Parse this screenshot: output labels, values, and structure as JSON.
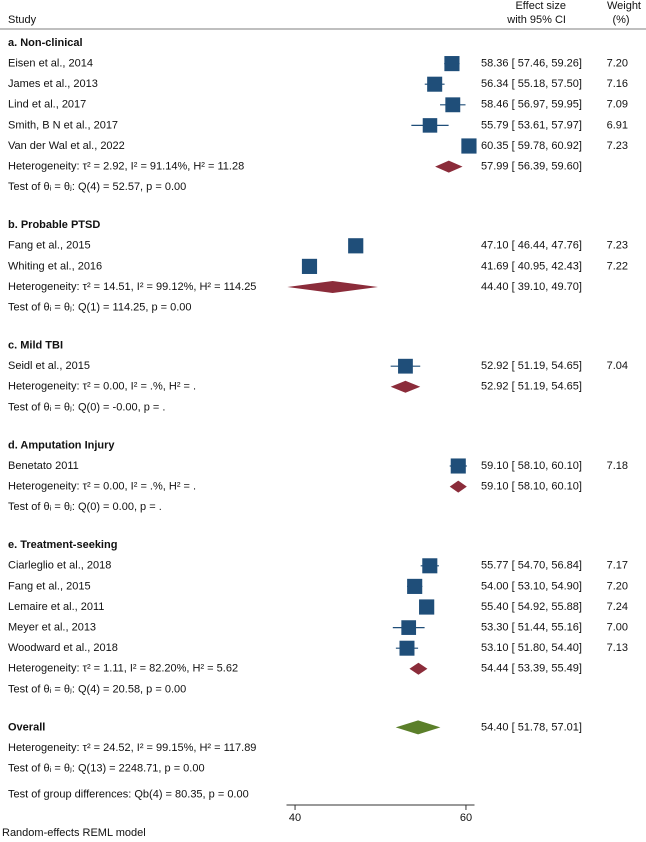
{
  "chart_data": {
    "type": "forest",
    "header": {
      "study": "Study",
      "effect": [
        "Effect size",
        "with 95% CI"
      ],
      "weight": [
        "Weight",
        "(%)"
      ]
    },
    "xlim": [
      39,
      61
    ],
    "xticks": [
      40,
      60
    ],
    "colors": {
      "study": "#1f4e79",
      "subgroup": "#8b2c3a",
      "overall": "#5b7f2a"
    },
    "groups": [
      {
        "name": "a. Non-clinical",
        "studies": [
          {
            "name": "Eisen et al., 2014",
            "estimate": 58.36,
            "lower": 57.46,
            "upper": 59.26,
            "ci_label": "58.36 [ 57.46, 59.26]",
            "weight": 7.2,
            "weight_label": "7.20"
          },
          {
            "name": "James et al., 2013",
            "estimate": 56.34,
            "lower": 55.18,
            "upper": 57.5,
            "ci_label": "56.34 [ 55.18, 57.50]",
            "weight": 7.16,
            "weight_label": "7.16"
          },
          {
            "name": "Lind et al., 2017",
            "estimate": 58.46,
            "lower": 56.97,
            "upper": 59.95,
            "ci_label": "58.46 [ 56.97, 59.95]",
            "weight": 7.09,
            "weight_label": "7.09"
          },
          {
            "name": "Smith, B N et al., 2017",
            "estimate": 55.79,
            "lower": 53.61,
            "upper": 57.97,
            "ci_label": "55.79 [ 53.61, 57.97]",
            "weight": 6.91,
            "weight_label": "6.91"
          },
          {
            "name": "Van der  Wal et al., 2022",
            "estimate": 60.35,
            "lower": 59.78,
            "upper": 60.92,
            "ci_label": "60.35 [ 59.78, 60.92]",
            "weight": 7.23,
            "weight_label": "7.23"
          }
        ],
        "summary": {
          "estimate": 57.99,
          "lower": 56.39,
          "upper": 59.6,
          "ci_label": "57.99 [ 56.39, 59.60]"
        },
        "heterogeneity": "Heterogeneity: τ² = 2.92, I² = 91.14%, H² = 11.28",
        "test": "Test of θᵢ = θⱼ: Q(4) = 52.57, p = 0.00"
      },
      {
        "name": "b. Probable PTSD",
        "studies": [
          {
            "name": "Fang et al., 2015",
            "estimate": 47.1,
            "lower": 46.44,
            "upper": 47.76,
            "ci_label": "47.10 [ 46.44, 47.76]",
            "weight": 7.23,
            "weight_label": "7.23"
          },
          {
            "name": "Whiting et al., 2016",
            "estimate": 41.69,
            "lower": 40.95,
            "upper": 42.43,
            "ci_label": "41.69 [ 40.95, 42.43]",
            "weight": 7.22,
            "weight_label": "7.22"
          }
        ],
        "summary": {
          "estimate": 44.4,
          "lower": 39.1,
          "upper": 49.7,
          "ci_label": "44.40 [ 39.10, 49.70]"
        },
        "heterogeneity": "Heterogeneity: τ² = 14.51, I² = 99.12%, H² = 114.25",
        "test": "Test of θᵢ = θⱼ: Q(1) = 114.25, p = 0.00"
      },
      {
        "name": "c. Mild TBI",
        "studies": [
          {
            "name": "Seidl et al., 2015",
            "estimate": 52.92,
            "lower": 51.19,
            "upper": 54.65,
            "ci_label": "52.92 [ 51.19, 54.65]",
            "weight": 7.04,
            "weight_label": "7.04"
          }
        ],
        "summary": {
          "estimate": 52.92,
          "lower": 51.19,
          "upper": 54.65,
          "ci_label": "52.92 [ 51.19, 54.65]"
        },
        "heterogeneity": "Heterogeneity: τ² = 0.00, I² = .%, H² = .",
        "test": "Test of θᵢ = θⱼ: Q(0) = -0.00, p = ."
      },
      {
        "name": "d. Amputation Injury",
        "studies": [
          {
            "name": "Benetato 2011",
            "estimate": 59.1,
            "lower": 58.1,
            "upper": 60.1,
            "ci_label": "59.10 [ 58.10, 60.10]",
            "weight": 7.18,
            "weight_label": "7.18"
          }
        ],
        "summary": {
          "estimate": 59.1,
          "lower": 58.1,
          "upper": 60.1,
          "ci_label": "59.10 [ 58.10, 60.10]"
        },
        "heterogeneity": "Heterogeneity: τ² = 0.00, I² = .%, H² = .",
        "test": "Test of θᵢ = θⱼ: Q(0) = 0.00, p = ."
      },
      {
        "name": "e. Treatment-seeking",
        "studies": [
          {
            "name": "Ciarleglio et al., 2018",
            "estimate": 55.77,
            "lower": 54.7,
            "upper": 56.84,
            "ci_label": "55.77 [ 54.70, 56.84]",
            "weight": 7.17,
            "weight_label": "7.17"
          },
          {
            "name": "Fang et al., 2015",
            "estimate": 54.0,
            "lower": 53.1,
            "upper": 54.9,
            "ci_label": "54.00 [ 53.10, 54.90]",
            "weight": 7.2,
            "weight_label": "7.20"
          },
          {
            "name": "Lemaire et al., 2011",
            "estimate": 55.4,
            "lower": 54.92,
            "upper": 55.88,
            "ci_label": "55.40 [ 54.92, 55.88]",
            "weight": 7.24,
            "weight_label": "7.24"
          },
          {
            "name": "Meyer et al., 2013",
            "estimate": 53.3,
            "lower": 51.44,
            "upper": 55.16,
            "ci_label": "53.30 [ 51.44, 55.16]",
            "weight": 7.0,
            "weight_label": "7.00"
          },
          {
            "name": "Woodward et al., 2018",
            "estimate": 53.1,
            "lower": 51.8,
            "upper": 54.4,
            "ci_label": "53.10 [ 51.80, 54.40]",
            "weight": 7.13,
            "weight_label": "7.13"
          }
        ],
        "summary": {
          "estimate": 54.44,
          "lower": 53.39,
          "upper": 55.49,
          "ci_label": "54.44 [ 53.39, 55.49]"
        },
        "heterogeneity": "Heterogeneity: τ² = 1.11, I² = 82.20%, H² = 5.62",
        "test": "Test of θᵢ = θⱼ: Q(4) = 20.58, p = 0.00"
      }
    ],
    "overall": {
      "name": "Overall",
      "estimate": 54.4,
      "lower": 51.78,
      "upper": 57.01,
      "ci_label": "54.40 [ 51.78, 57.01]",
      "heterogeneity": "Heterogeneity: τ² = 24.52, I² = 99.15%, H² = 117.89",
      "test": "Test of θᵢ = θⱼ: Q(13) = 2248.71, p = 0.00"
    },
    "group_test": "Test of group differences: Qb(4) = 80.35, p = 0.00",
    "footer": "Random-effects REML model"
  }
}
